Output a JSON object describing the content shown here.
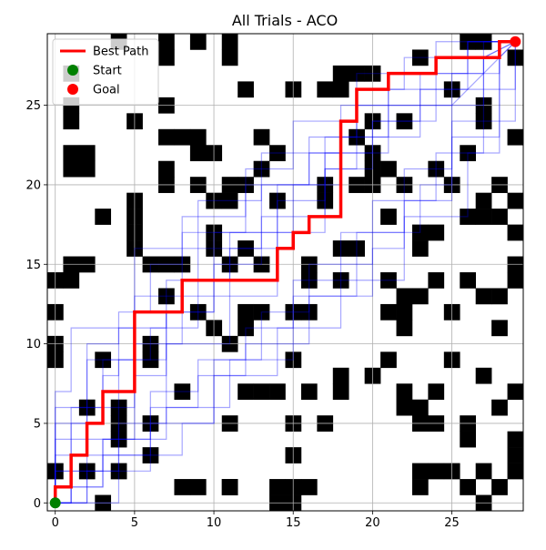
{
  "chart_data": {
    "type": "grid-path",
    "title": "All Trials - ACO",
    "xlabel": "",
    "ylabel": "",
    "xlim": [
      -0.5,
      29.5
    ],
    "ylim": [
      -0.5,
      29.5
    ],
    "grid": true,
    "x_ticks": [
      0,
      5,
      10,
      15,
      20,
      25
    ],
    "y_ticks": [
      0,
      5,
      10,
      15,
      20,
      25
    ],
    "legend": {
      "position": "top-left",
      "entries": [
        {
          "label": "Best Path",
          "marker": "line",
          "color": "#ff0000"
        },
        {
          "label": "Start",
          "marker": "dot",
          "color": "#008000"
        },
        {
          "label": "Goal",
          "marker": "dot",
          "color": "#ff0000"
        }
      ]
    },
    "obstacle_color": "#000000",
    "trial_color": "#0000ff",
    "obstacles": [
      [
        3,
        0
      ],
      [
        14,
        0
      ],
      [
        15,
        0
      ],
      [
        27,
        0
      ],
      [
        14,
        1
      ],
      [
        15,
        1
      ],
      [
        16,
        1
      ],
      [
        26,
        1
      ],
      [
        28,
        1
      ],
      [
        9,
        1
      ],
      [
        11,
        1
      ],
      [
        8,
        1
      ],
      [
        0,
        2
      ],
      [
        2,
        2
      ],
      [
        4,
        2
      ],
      [
        23,
        2
      ],
      [
        24,
        2
      ],
      [
        25,
        2
      ],
      [
        27,
        2
      ],
      [
        23,
        1
      ],
      [
        29,
        2
      ],
      [
        11,
        1
      ],
      [
        6,
        3
      ],
      [
        15,
        3
      ],
      [
        29,
        3
      ],
      [
        29,
        4
      ],
      [
        4,
        4
      ],
      [
        4,
        5
      ],
      [
        6,
        5
      ],
      [
        11,
        5
      ],
      [
        15,
        5
      ],
      [
        17,
        5
      ],
      [
        23,
        5
      ],
      [
        24,
        5
      ],
      [
        26,
        5
      ],
      [
        26,
        4
      ],
      [
        2,
        6
      ],
      [
        4,
        6
      ],
      [
        22,
        6
      ],
      [
        23,
        6
      ],
      [
        28,
        6
      ],
      [
        8,
        7
      ],
      [
        12,
        7
      ],
      [
        13,
        7
      ],
      [
        14,
        7
      ],
      [
        16,
        7
      ],
      [
        18,
        7
      ],
      [
        22,
        7
      ],
      [
        24,
        7
      ],
      [
        29,
        7
      ],
      [
        18,
        8
      ],
      [
        20,
        8
      ],
      [
        27,
        8
      ],
      [
        0,
        9
      ],
      [
        3,
        9
      ],
      [
        6,
        9
      ],
      [
        15,
        9
      ],
      [
        21,
        9
      ],
      [
        25,
        9
      ],
      [
        0,
        10
      ],
      [
        6,
        10
      ],
      [
        11,
        10
      ],
      [
        10,
        11
      ],
      [
        12,
        11
      ],
      [
        22,
        11
      ],
      [
        28,
        11
      ],
      [
        0,
        12
      ],
      [
        9,
        12
      ],
      [
        12,
        12
      ],
      [
        13,
        12
      ],
      [
        15,
        12
      ],
      [
        16,
        12
      ],
      [
        21,
        12
      ],
      [
        22,
        12
      ],
      [
        25,
        12
      ],
      [
        7,
        13
      ],
      [
        22,
        13
      ],
      [
        23,
        13
      ],
      [
        27,
        13
      ],
      [
        28,
        13
      ],
      [
        0,
        14
      ],
      [
        1,
        14
      ],
      [
        16,
        14
      ],
      [
        18,
        14
      ],
      [
        21,
        14
      ],
      [
        24,
        14
      ],
      [
        26,
        14
      ],
      [
        29,
        14
      ],
      [
        1,
        15
      ],
      [
        2,
        15
      ],
      [
        6,
        15
      ],
      [
        7,
        15
      ],
      [
        8,
        15
      ],
      [
        11,
        15
      ],
      [
        13,
        15
      ],
      [
        16,
        15
      ],
      [
        29,
        15
      ],
      [
        5,
        16
      ],
      [
        10,
        16
      ],
      [
        12,
        16
      ],
      [
        18,
        16
      ],
      [
        19,
        16
      ],
      [
        23,
        16
      ],
      [
        23,
        17
      ],
      [
        24,
        17
      ],
      [
        5,
        17
      ],
      [
        5,
        18
      ],
      [
        3,
        18
      ],
      [
        10,
        17
      ],
      [
        21,
        18
      ],
      [
        26,
        18
      ],
      [
        27,
        18
      ],
      [
        28,
        18
      ],
      [
        29,
        17
      ],
      [
        5,
        19
      ],
      [
        10,
        19
      ],
      [
        11,
        19
      ],
      [
        14,
        19
      ],
      [
        17,
        19
      ],
      [
        27,
        19
      ],
      [
        29,
        19
      ],
      [
        7,
        20
      ],
      [
        9,
        20
      ],
      [
        11,
        20
      ],
      [
        12,
        20
      ],
      [
        17,
        20
      ],
      [
        19,
        20
      ],
      [
        20,
        20
      ],
      [
        22,
        20
      ],
      [
        25,
        20
      ],
      [
        28,
        20
      ],
      [
        1,
        21
      ],
      [
        2,
        21
      ],
      [
        7,
        21
      ],
      [
        13,
        21
      ],
      [
        20,
        21
      ],
      [
        21,
        21
      ],
      [
        24,
        21
      ],
      [
        1,
        22
      ],
      [
        2,
        22
      ],
      [
        9,
        22
      ],
      [
        10,
        22
      ],
      [
        14,
        22
      ],
      [
        20,
        22
      ],
      [
        26,
        22
      ],
      [
        7,
        23
      ],
      [
        8,
        23
      ],
      [
        9,
        23
      ],
      [
        13,
        23
      ],
      [
        19,
        23
      ],
      [
        29,
        23
      ],
      [
        1,
        24
      ],
      [
        5,
        24
      ],
      [
        20,
        24
      ],
      [
        22,
        24
      ],
      [
        27,
        24
      ],
      [
        1,
        25
      ],
      [
        7,
        25
      ],
      [
        27,
        25
      ],
      [
        12,
        26
      ],
      [
        15,
        26
      ],
      [
        17,
        26
      ],
      [
        18,
        26
      ],
      [
        25,
        26
      ],
      [
        1,
        27
      ],
      [
        18,
        27
      ],
      [
        19,
        27
      ],
      [
        20,
        27
      ],
      [
        23,
        28
      ],
      [
        29,
        28
      ],
      [
        4,
        29
      ],
      [
        7,
        29
      ],
      [
        9,
        29
      ],
      [
        11,
        29
      ],
      [
        26,
        29
      ],
      [
        27,
        29
      ],
      [
        7,
        28
      ],
      [
        11,
        28
      ]
    ],
    "best_path": {
      "name": "Best Path",
      "x": [
        0,
        0,
        1,
        1,
        2,
        2,
        3,
        3,
        5,
        5,
        8,
        8,
        14,
        14,
        15,
        15,
        16,
        16,
        18,
        18,
        19,
        19,
        21,
        21,
        24,
        24,
        28,
        28,
        29
      ],
      "y": [
        0,
        1,
        1,
        3,
        3,
        5,
        5,
        7,
        7,
        12,
        12,
        14,
        14,
        16,
        16,
        17,
        17,
        18,
        18,
        24,
        24,
        26,
        26,
        27,
        27,
        28,
        28,
        29,
        29
      ]
    },
    "start": {
      "name": "Start",
      "x": 0,
      "y": 0
    },
    "goal": {
      "name": "Goal",
      "x": 29,
      "y": 29
    },
    "trials": [
      {
        "x": [
          0,
          0,
          3,
          3,
          6,
          6,
          9,
          9,
          12,
          12,
          15,
          15,
          18,
          18,
          22,
          22,
          25,
          25,
          29
        ],
        "y": [
          0,
          2,
          2,
          4,
          4,
          7,
          7,
          9,
          9,
          11,
          11,
          14,
          14,
          17,
          17,
          21,
          21,
          25,
          29
        ]
      },
      {
        "x": [
          0,
          1,
          1,
          4,
          4,
          4,
          7,
          7,
          10,
          10,
          13,
          13,
          17,
          17,
          20,
          20,
          24,
          24,
          28,
          28,
          29
        ],
        "y": [
          0,
          0,
          3,
          3,
          6,
          9,
          9,
          12,
          12,
          15,
          15,
          18,
          18,
          21,
          21,
          24,
          24,
          27,
          27,
          29,
          29
        ]
      },
      {
        "x": [
          0,
          0,
          2,
          2,
          5,
          5,
          8,
          8,
          11,
          11,
          14,
          14,
          17,
          17,
          21,
          21,
          25,
          25,
          27,
          27,
          29
        ],
        "y": [
          0,
          4,
          4,
          6,
          6,
          10,
          10,
          13,
          13,
          16,
          16,
          19,
          19,
          22,
          22,
          25,
          25,
          27,
          27,
          29,
          29
        ]
      },
      {
        "x": [
          0,
          2,
          2,
          6,
          6,
          10,
          10,
          14,
          14,
          18,
          18,
          22,
          22,
          26,
          26,
          28,
          28,
          29
        ],
        "y": [
          0,
          0,
          2,
          2,
          5,
          5,
          8,
          8,
          11,
          11,
          14,
          14,
          18,
          18,
          22,
          22,
          28,
          29
        ]
      },
      {
        "x": [
          0,
          0,
          1,
          1,
          3,
          3,
          4,
          4,
          7,
          7,
          9,
          9,
          13,
          13,
          16,
          16,
          19,
          19,
          23,
          23,
          26,
          26,
          29
        ],
        "y": [
          0,
          3,
          3,
          6,
          6,
          8,
          8,
          11,
          11,
          14,
          14,
          16,
          16,
          20,
          20,
          23,
          23,
          25,
          25,
          27,
          27,
          29,
          29
        ]
      },
      {
        "x": [
          0,
          0,
          3,
          3,
          5,
          5,
          8,
          8,
          12,
          12,
          16,
          16,
          20,
          20,
          23,
          23,
          27,
          27,
          29
        ],
        "y": [
          0,
          5,
          5,
          9,
          9,
          13,
          13,
          17,
          17,
          20,
          20,
          22,
          22,
          24,
          24,
          26,
          26,
          28,
          29
        ]
      },
      {
        "x": [
          0,
          1,
          1,
          3,
          3,
          7,
          7,
          11,
          11,
          15,
          15,
          19,
          19,
          23,
          23,
          25,
          25,
          29,
          29
        ],
        "y": [
          0,
          0,
          1,
          1,
          4,
          4,
          6,
          6,
          9,
          9,
          13,
          13,
          17,
          17,
          20,
          20,
          24,
          24,
          29
        ]
      },
      {
        "x": [
          0,
          0,
          2,
          2,
          4,
          4,
          6,
          6,
          8,
          8,
          12,
          12,
          15,
          15,
          19,
          19,
          22,
          22,
          26,
          26,
          29
        ],
        "y": [
          0,
          6,
          6,
          10,
          10,
          12,
          12,
          15,
          15,
          18,
          18,
          21,
          21,
          24,
          24,
          26,
          26,
          28,
          28,
          29,
          29
        ]
      },
      {
        "x": [
          0,
          4,
          4,
          8,
          8,
          10,
          10,
          13,
          13,
          16,
          16,
          20,
          20,
          24,
          24,
          27,
          27,
          29,
          29
        ],
        "y": [
          0,
          0,
          3,
          3,
          5,
          5,
          9,
          9,
          12,
          12,
          15,
          15,
          19,
          19,
          22,
          22,
          26,
          26,
          29
        ]
      },
      {
        "x": [
          0,
          0,
          1,
          1,
          5,
          5,
          9,
          9,
          13,
          13,
          18,
          18,
          21,
          21,
          24,
          24,
          28,
          28,
          29
        ],
        "y": [
          0,
          7,
          7,
          11,
          11,
          16,
          16,
          19,
          19,
          22,
          22,
          25,
          25,
          27,
          27,
          28,
          28,
          29,
          29
        ]
      },
      {
        "x": [
          0,
          0,
          3,
          3,
          6,
          6,
          9,
          9,
          12,
          12,
          16,
          16,
          20,
          20,
          22,
          22,
          25,
          25,
          28,
          28,
          29
        ],
        "y": [
          0,
          1,
          1,
          3,
          3,
          6,
          6,
          8,
          8,
          10,
          10,
          13,
          13,
          16,
          16,
          19,
          19,
          23,
          23,
          29,
          29
        ]
      },
      {
        "x": [
          0,
          2,
          2,
          5,
          5,
          7,
          7,
          10,
          10,
          14,
          14,
          17,
          17,
          21,
          21,
          26,
          26,
          29
        ],
        "y": [
          0,
          0,
          4,
          4,
          8,
          8,
          12,
          12,
          17,
          17,
          20,
          20,
          23,
          23,
          26,
          26,
          29,
          29
        ]
      },
      {
        "x": [
          0,
          0,
          4,
          4,
          7,
          7,
          11,
          11,
          14,
          14,
          17,
          17,
          19,
          19,
          24,
          24,
          29
        ],
        "y": [
          0,
          2,
          2,
          5,
          5,
          10,
          10,
          13,
          13,
          17,
          17,
          21,
          21,
          27,
          27,
          29,
          29
        ]
      },
      {
        "x": [
          0,
          1,
          1,
          2,
          2,
          6,
          6,
          9,
          9,
          11,
          11,
          15,
          15,
          18,
          18,
          23,
          23,
          27,
          27,
          29
        ],
        "y": [
          0,
          0,
          5,
          5,
          9,
          9,
          11,
          11,
          14,
          14,
          17,
          17,
          20,
          20,
          23,
          23,
          25,
          25,
          28,
          29
        ]
      }
    ]
  }
}
